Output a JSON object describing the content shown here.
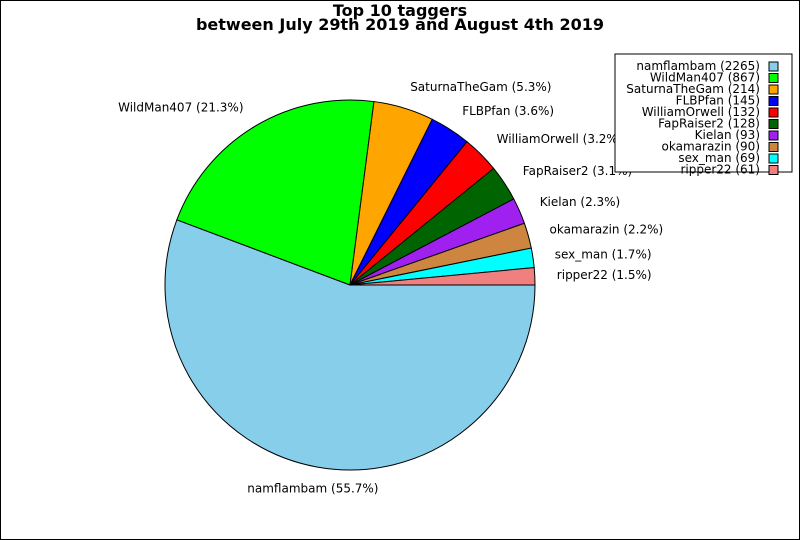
{
  "chart_data": {
    "type": "pie",
    "title": "Top 10 taggers",
    "subtitle": "between July 29th 2019 and August 4th 2019",
    "legend_position": "top-right",
    "start_angle_deg": 0,
    "direction": "clockwise",
    "slices": [
      {
        "name": "namflambam",
        "value": 2265,
        "percent_label": "namflambam (55.7%)",
        "legend_label": "namflambam (2265)",
        "color": "#87CEEB"
      },
      {
        "name": "WildMan407",
        "value": 867,
        "percent_label": "WildMan407 (21.3%)",
        "legend_label": "WildMan407 (867)",
        "color": "#00FF00"
      },
      {
        "name": "SaturnaTheGam",
        "value": 214,
        "percent_label": "SaturnaTheGam (5.3%)",
        "legend_label": "SaturnaTheGam (214)",
        "color": "#FFA500"
      },
      {
        "name": "FLBPfan",
        "value": 145,
        "percent_label": "FLBPfan (3.6%)",
        "legend_label": "FLBPfan (145)",
        "color": "#0000FF"
      },
      {
        "name": "WilliamOrwell",
        "value": 132,
        "percent_label": "WilliamOrwell (3.2%)",
        "legend_label": "WilliamOrwell (132)",
        "color": "#FF0000"
      },
      {
        "name": "FapRaiser2",
        "value": 128,
        "percent_label": "FapRaiser2 (3.1%)",
        "legend_label": "FapRaiser2 (128)",
        "color": "#006400"
      },
      {
        "name": "Kielan",
        "value": 93,
        "percent_label": "Kielan (2.3%)",
        "legend_label": "Kielan (93)",
        "color": "#A020F0"
      },
      {
        "name": "okamarazin",
        "value": 90,
        "percent_label": "okamarazin (2.2%)",
        "legend_label": "okamarazin (90)",
        "color": "#CD853F"
      },
      {
        "name": "sex_man",
        "value": 69,
        "percent_label": "sex_man (1.7%)",
        "legend_label": "sex_man (69)",
        "color": "#00FFFF"
      },
      {
        "name": "ripper22",
        "value": 61,
        "percent_label": "ripper22 (1.5%)",
        "legend_label": "ripper22 (61)",
        "color": "#F08080"
      }
    ]
  }
}
